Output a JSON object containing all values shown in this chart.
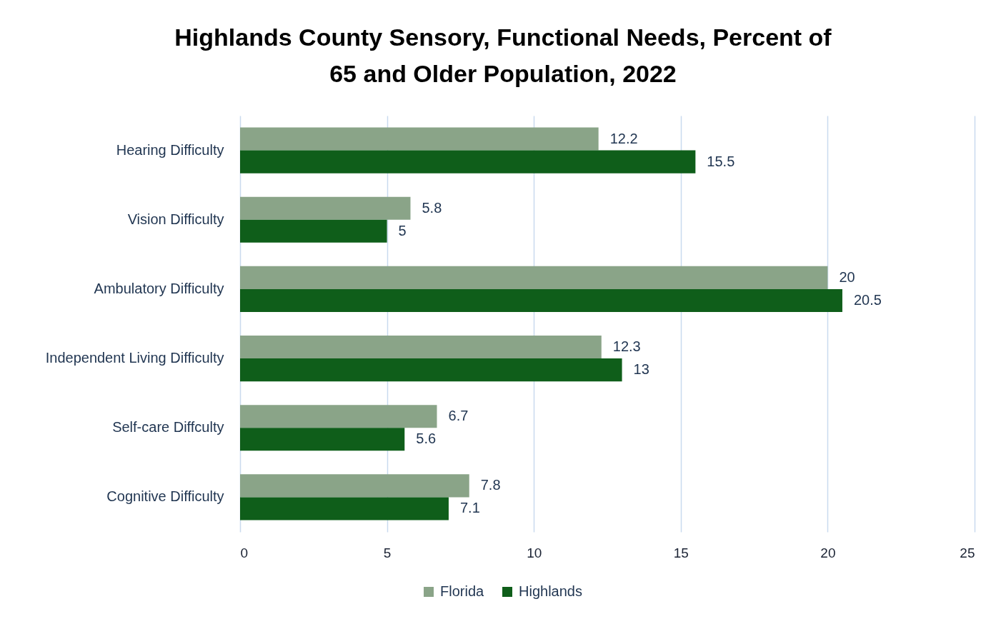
{
  "chart_data": {
    "type": "bar",
    "orientation": "horizontal",
    "title": "Highlands County Sensory, Functional Needs, Percent of 65 and Older Population, 2022",
    "categories": [
      "Hearing Difficulty",
      "Vision Difficulty",
      "Ambulatory Difficulty",
      "Independent Living Difficulty",
      "Self-care Diffculty",
      "Cognitive Difficulty"
    ],
    "series": [
      {
        "name": "Florida",
        "color": "#8aa488",
        "values": [
          12.2,
          5.8,
          20,
          12.3,
          6.7,
          7.8
        ]
      },
      {
        "name": "Highlands",
        "color": "#0f5e1a",
        "values": [
          15.5,
          5,
          20.5,
          13,
          5.6,
          7.1
        ]
      }
    ],
    "xlim": [
      0,
      25
    ],
    "xticks": [
      0,
      5,
      10,
      15,
      20,
      25
    ],
    "grid": "x",
    "legend": "bottom",
    "data_labels": true
  }
}
